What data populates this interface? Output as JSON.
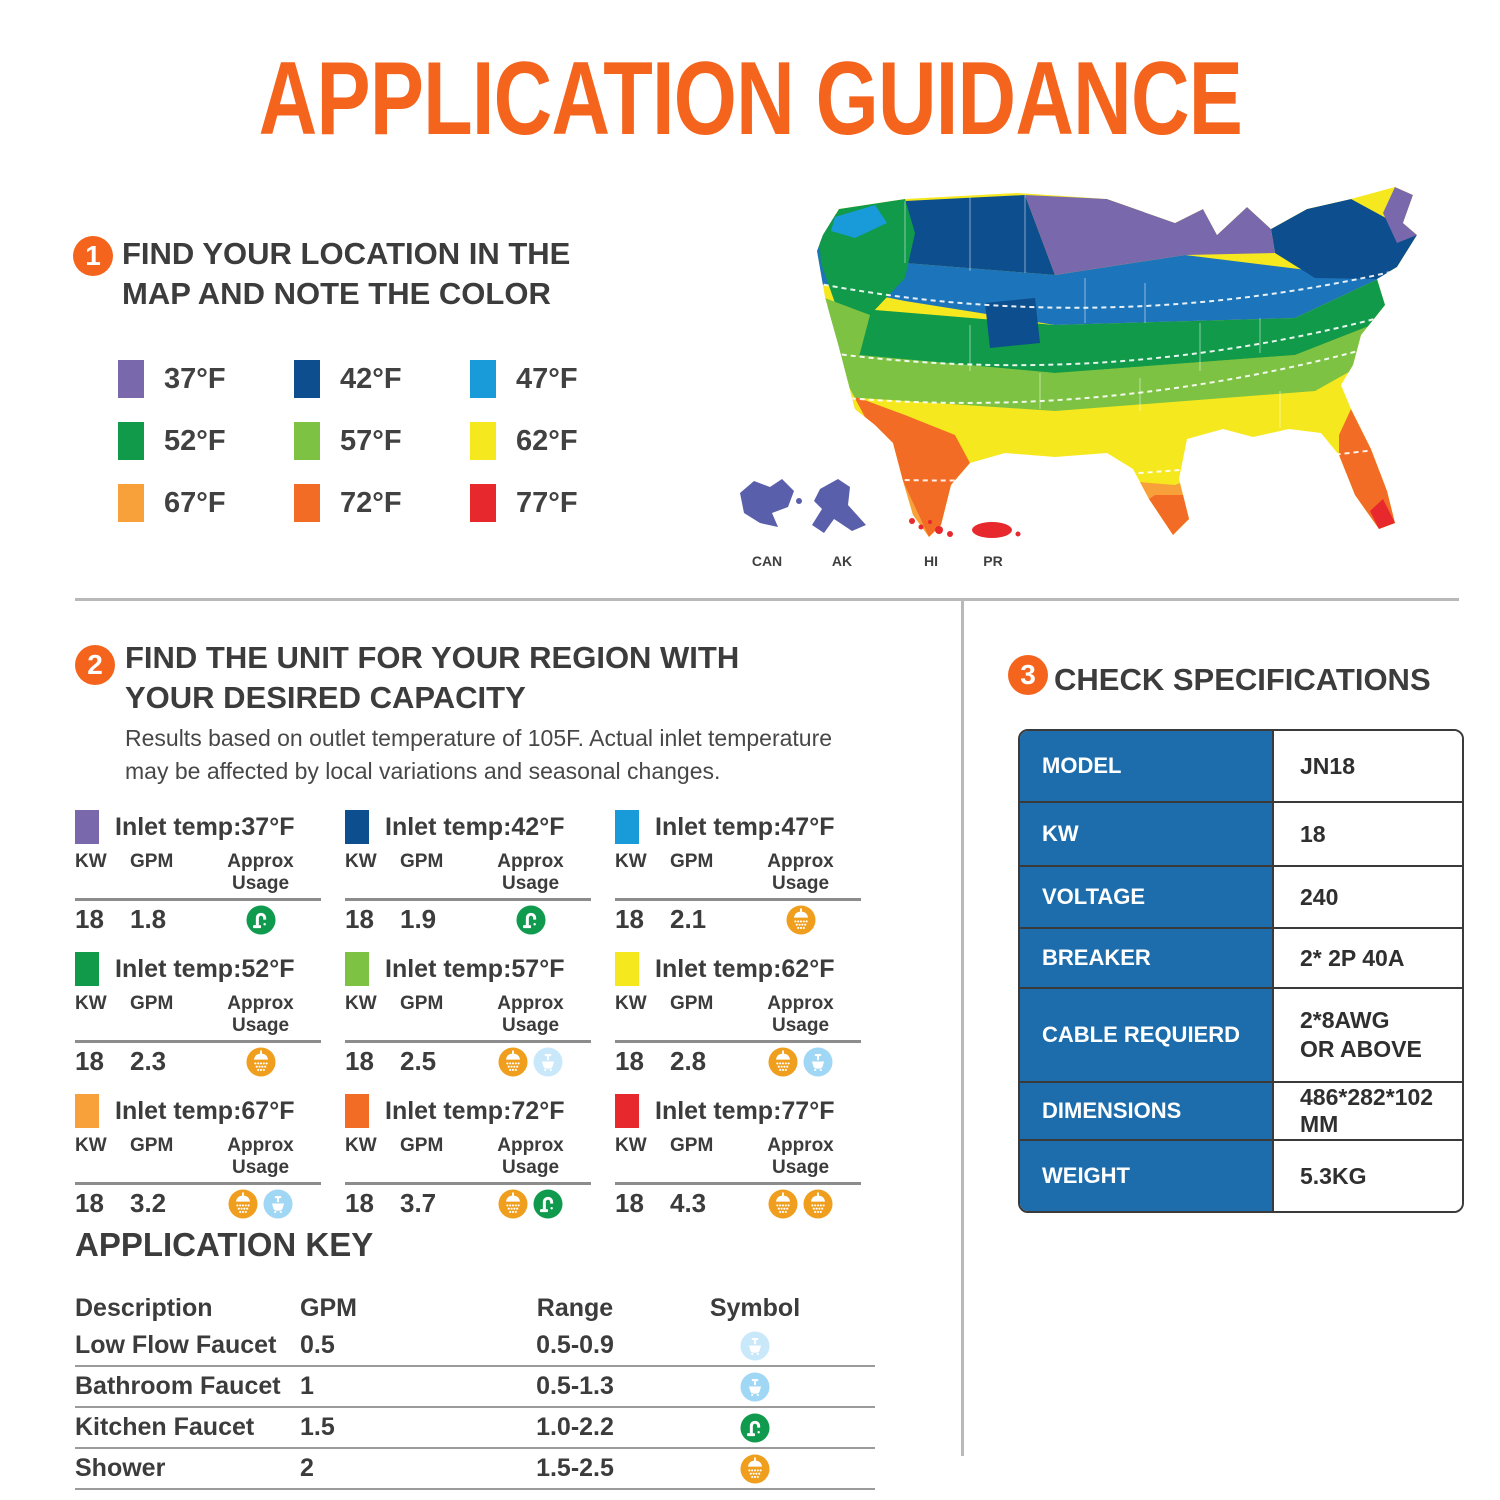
{
  "title": "APPLICATION GUIDANCE",
  "accent_color": "#f4641d",
  "step1": {
    "number": "1",
    "title_lines": [
      "FIND YOUR LOCATION IN THE",
      "MAP AND NOTE THE COLOR"
    ],
    "legend": [
      {
        "temp": "37°F",
        "color": "#7a68ad"
      },
      {
        "temp": "42°F",
        "color": "#0c4e8e"
      },
      {
        "temp": "47°F",
        "color": "#189bd8"
      },
      {
        "temp": "52°F",
        "color": "#109a49"
      },
      {
        "temp": "57°F",
        "color": "#7dc242"
      },
      {
        "temp": "62°F",
        "color": "#f6e81f"
      },
      {
        "temp": "67°F",
        "color": "#f8a13b"
      },
      {
        "temp": "72°F",
        "color": "#f26c26"
      },
      {
        "temp": "77°F",
        "color": "#e7282c"
      }
    ],
    "map_inset_labels": [
      "CAN",
      "AK",
      "HI",
      "PR"
    ]
  },
  "step2": {
    "number": "2",
    "title_lines": [
      "FIND THE UNIT FOR YOUR REGION WITH",
      "YOUR DESIRED CAPACITY"
    ],
    "note_lines": [
      "Results based on outlet temperature of 105F. Actual inlet temperature",
      "may be affected by local variations and seasonal changes."
    ],
    "col_headers": [
      "KW",
      "GPM",
      "Approx Usage"
    ],
    "units": [
      {
        "label": "Inlet temp:37°F",
        "color": "#7a68ad",
        "kw": "18",
        "gpm": "1.8",
        "usage": [
          "kitchen-faucet"
        ]
      },
      {
        "label": "Inlet temp:42°F",
        "color": "#0c4e8e",
        "kw": "18",
        "gpm": "1.9",
        "usage": [
          "kitchen-faucet"
        ]
      },
      {
        "label": "Inlet temp:47°F",
        "color": "#189bd8",
        "kw": "18",
        "gpm": "2.1",
        "usage": [
          "shower"
        ]
      },
      {
        "label": "Inlet temp:52°F",
        "color": "#109a49",
        "kw": "18",
        "gpm": "2.3",
        "usage": [
          "shower"
        ]
      },
      {
        "label": "Inlet temp:57°F",
        "color": "#7dc242",
        "kw": "18",
        "gpm": "2.5",
        "usage": [
          "shower",
          "low-flow-faucet"
        ]
      },
      {
        "label": "Inlet temp:62°F",
        "color": "#f6e81f",
        "kw": "18",
        "gpm": "2.8",
        "usage": [
          "shower",
          "bathroom-faucet"
        ]
      },
      {
        "label": "Inlet temp:67°F",
        "color": "#f8a13b",
        "kw": "18",
        "gpm": "3.2",
        "usage": [
          "shower",
          "bathroom-faucet"
        ]
      },
      {
        "label": "Inlet temp:72°F",
        "color": "#f26c26",
        "kw": "18",
        "gpm": "3.7",
        "usage": [
          "shower",
          "kitchen-faucet"
        ]
      },
      {
        "label": "Inlet temp:77°F",
        "color": "#e7282c",
        "kw": "18",
        "gpm": "4.3",
        "usage": [
          "shower",
          "shower"
        ]
      }
    ]
  },
  "step3": {
    "number": "3",
    "title": "CHECK SPECIFICATIONS",
    "table_header_color": "#1d6dad",
    "specs": [
      {
        "label": "MODEL",
        "value_lines": [
          "JN18"
        ]
      },
      {
        "label": "KW",
        "value_lines": [
          "18"
        ]
      },
      {
        "label": "VOLTAGE",
        "value_lines": [
          "240"
        ]
      },
      {
        "label": "BREAKER",
        "value_lines": [
          "2* 2P 40A"
        ]
      },
      {
        "label": "CABLE REQUIERD",
        "value_lines": [
          "2*8AWG",
          "OR ABOVE"
        ]
      },
      {
        "label": "DIMENSIONS",
        "value_lines": [
          "486*282*102 MM"
        ]
      },
      {
        "label": "WEIGHT",
        "value_lines": [
          "5.3KG"
        ]
      }
    ]
  },
  "application_key": {
    "title": "APPLICATION KEY",
    "headers": [
      "Description",
      "GPM",
      "Range",
      "Symbol"
    ],
    "rows": [
      {
        "description": "Low Flow Faucet",
        "gpm": "0.5",
        "range": "0.5-0.9",
        "symbol": "low-flow-faucet"
      },
      {
        "description": "Bathroom Faucet",
        "gpm": "1",
        "range": "0.5-1.3",
        "symbol": "bathroom-faucet"
      },
      {
        "description": "Kitchen Faucet",
        "gpm": "1.5",
        "range": "1.0-2.2",
        "symbol": "kitchen-faucet"
      },
      {
        "description": "Shower",
        "gpm": "2",
        "range": "1.5-2.5",
        "symbol": "shower"
      }
    ]
  },
  "icon_colors": {
    "shower": "#ef9e1e",
    "kitchen-faucet": "#0f9a4d",
    "bathroom-faucet": "#9fd7f5",
    "low-flow-faucet": "#c9e9fb"
  }
}
